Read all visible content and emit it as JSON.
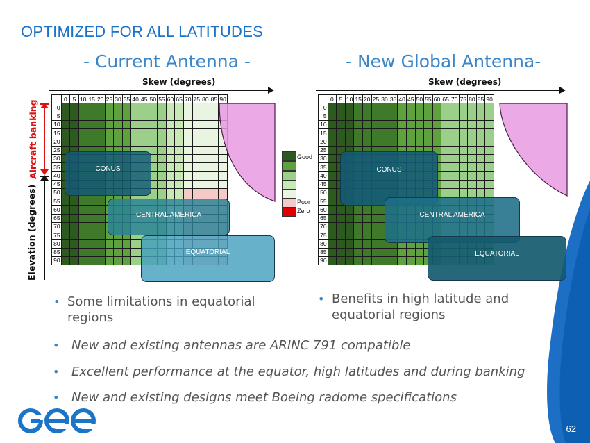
{
  "title": "OPTIMIZED FOR ALL LATITUDES",
  "left_panel": {
    "subtitle": "- Current Antenna -",
    "skew_label": "Skew (degrees)",
    "regions": {
      "conus": "CONUS",
      "central": "CENTRAL AMERICA",
      "equatorial": "EQUATORIAL"
    },
    "bullet": "Some limitations in equatorial regions"
  },
  "right_panel": {
    "subtitle": "- New Global Antenna-",
    "skew_label": "Skew (degrees)",
    "regions": {
      "conus": "CONUS",
      "central": "CENTRAL AMERICA",
      "equatorial": "EQUATORIAL"
    },
    "bullet": "Benefits in high latitude and equatorial regions"
  },
  "axis": {
    "banking_label": "Aircraft banking",
    "elevation_label": "Elevation (degrees)",
    "skew_ticks": [
      "0",
      "5",
      "10",
      "15",
      "20",
      "25",
      "30",
      "35",
      "40",
      "45",
      "50",
      "55",
      "60",
      "65",
      "70",
      "75",
      "80",
      "85",
      "90"
    ],
    "elevation_ticks": [
      "0",
      "5",
      "10",
      "15",
      "20",
      "25",
      "30",
      "35",
      "40",
      "45",
      "50",
      "55",
      "60",
      "65",
      "70",
      "75",
      "80",
      "85",
      "90"
    ]
  },
  "legend": {
    "good": "Good",
    "poor": "Poor",
    "zero": "Zero",
    "colors": [
      "#2d5a1e",
      "#5ea23e",
      "#9cd08a",
      "#c8e8b7",
      "#e9f5e0",
      "#f6c9c9",
      "#e00000"
    ]
  },
  "bullets": [
    "New and existing antennas are ARINC 791 compatible",
    "Excellent performance at the equator, high latitudes and during banking",
    "New and existing designs meet Boeing radome specifications"
  ],
  "page_number": "62",
  "logo_text": "GEE"
}
